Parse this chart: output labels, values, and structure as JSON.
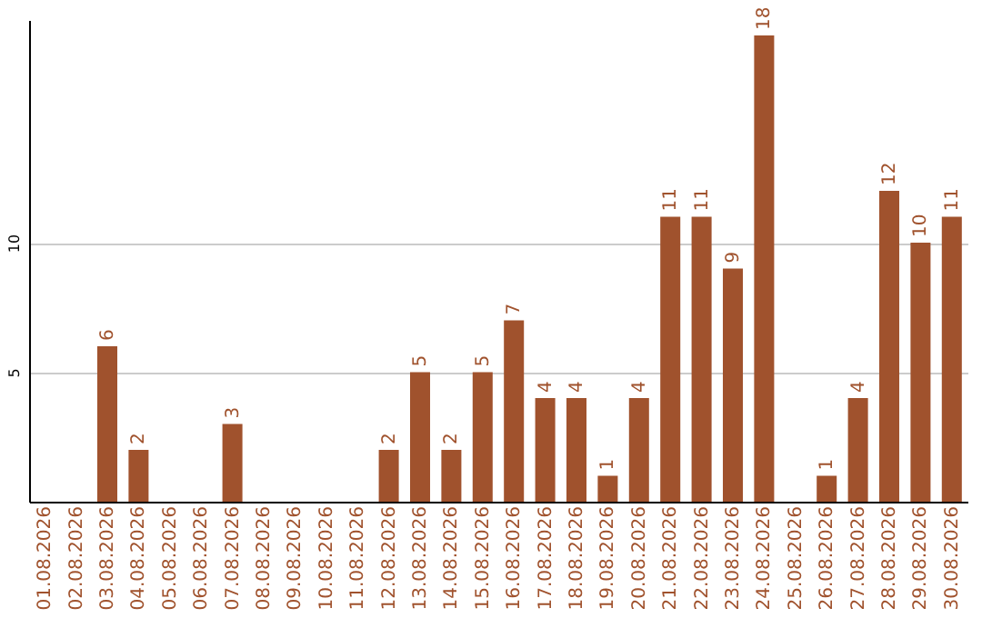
{
  "chart_data": {
    "type": "bar",
    "categories": [
      "01.08.2026",
      "02.08.2026",
      "03.08.2026",
      "04.08.2026",
      "05.08.2026",
      "06.08.2026",
      "07.08.2026",
      "08.08.2026",
      "09.08.2026",
      "10.08.2026",
      "11.08.2026",
      "12.08.2026",
      "13.08.2026",
      "14.08.2026",
      "15.08.2026",
      "16.08.2026",
      "17.08.2026",
      "18.08.2026",
      "19.08.2026",
      "20.08.2026",
      "21.08.2026",
      "22.08.2026",
      "23.08.2026",
      "24.08.2026",
      "25.08.2026",
      "26.08.2026",
      "27.08.2026",
      "28.08.2026",
      "29.08.2026",
      "30.08.2026"
    ],
    "values": [
      0,
      0,
      6,
      2,
      0,
      0,
      3,
      0,
      0,
      0,
      0,
      2,
      5,
      2,
      5,
      7,
      4,
      4,
      1,
      4,
      11,
      11,
      9,
      18,
      0,
      1,
      4,
      12,
      10,
      11
    ],
    "value_labels": [
      null,
      null,
      "6",
      "2",
      null,
      null,
      "3",
      null,
      null,
      null,
      null,
      "2",
      "5",
      "2",
      "5",
      "7",
      "4",
      "4",
      "1",
      "4",
      "11",
      "11",
      "9",
      "18",
      null,
      "1",
      "4",
      "12",
      "10",
      "11"
    ],
    "color": "#a0522d",
    "ylim": [
      0,
      18.6
    ],
    "yticks": [
      5,
      10
    ],
    "grid": "y"
  }
}
